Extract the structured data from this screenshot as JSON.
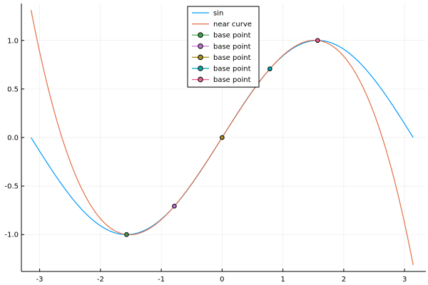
{
  "chart_data": {
    "type": "line",
    "title": "",
    "xlabel": "",
    "ylabel": "",
    "xlim": [
      -3.3,
      3.35
    ],
    "ylim": [
      -1.38,
      1.38
    ],
    "grid": true,
    "x_ticks": [
      -3,
      -2,
      -1,
      0,
      1,
      2,
      3
    ],
    "x_tick_labels": [
      "-3",
      "-2",
      "-1",
      "0",
      "1",
      "2",
      "3"
    ],
    "y_ticks": [
      -1.0,
      -0.5,
      0.0,
      0.5,
      1.0
    ],
    "y_tick_labels": [
      "-1.0",
      "-0.5",
      "0.0",
      "0.5",
      "1.0"
    ],
    "legend_position": "top-center",
    "series": [
      {
        "name": "sin",
        "kind": "line",
        "color": "#009af9",
        "x_range": [
          -3.1416,
          3.1416
        ],
        "x": [
          -3.1416,
          -2.75,
          -2.36,
          -1.96,
          -1.5708,
          -1.18,
          -0.785,
          -0.39,
          0.0,
          0.39,
          0.785,
          1.18,
          1.5708,
          1.96,
          2.36,
          2.75,
          3.1416
        ],
        "values": [
          0.0,
          -0.38,
          -0.71,
          -0.92,
          -1.0,
          -0.92,
          -0.71,
          -0.38,
          0.0,
          0.38,
          0.71,
          0.92,
          1.0,
          0.92,
          0.71,
          0.38,
          0.0
        ]
      },
      {
        "name": "near curve",
        "kind": "line",
        "color": "#e26f46",
        "x_range": [
          -3.1416,
          3.1416
        ],
        "x": [
          -3.1416,
          -2.75,
          -2.36,
          -1.96,
          -1.5708,
          -1.18,
          -0.785,
          -0.39,
          0.0,
          0.39,
          0.785,
          1.18,
          1.5708,
          1.96,
          2.36,
          2.75,
          3.1416
        ],
        "values": [
          1.31,
          0.2,
          -0.55,
          -0.91,
          -1.0,
          -0.92,
          -0.71,
          -0.38,
          0.0,
          0.38,
          0.71,
          0.92,
          1.0,
          0.86,
          0.41,
          -0.32,
          -1.31
        ]
      },
      {
        "name": "base point",
        "kind": "marker",
        "color": "#3da44d",
        "x": [
          -1.5708
        ],
        "values": [
          -1.0
        ]
      },
      {
        "name": "base point",
        "kind": "marker",
        "color": "#c271d2",
        "x": [
          -0.7854
        ],
        "values": [
          -0.7071
        ]
      },
      {
        "name": "base point",
        "kind": "marker",
        "color": "#ac8d18",
        "x": [
          0.0
        ],
        "values": [
          0.0
        ]
      },
      {
        "name": "base point",
        "kind": "marker",
        "color": "#00a9ad",
        "x": [
          0.7854
        ],
        "values": [
          0.7071
        ]
      },
      {
        "name": "base point",
        "kind": "marker",
        "color": "#ed5d92",
        "x": [
          1.5708
        ],
        "values": [
          1.0
        ]
      }
    ]
  }
}
